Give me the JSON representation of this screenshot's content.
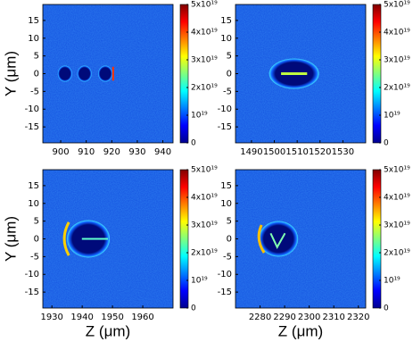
{
  "chart_data": [
    {
      "type": "heatmap",
      "ylabel": "Y (μm)",
      "xlim": [
        893,
        944
      ],
      "xticks": [
        900,
        910,
        920,
        930,
        940
      ],
      "ylim": [
        -19.5,
        19.5
      ],
      "yticks": [
        -15,
        -10,
        -5,
        0,
        5,
        10,
        15
      ],
      "colorbar": {
        "colormap": "jet",
        "clim": [
          0,
          5e+19
        ],
        "ticks": [
          0,
          {
            "value": 1e+19,
            "label": "10¹⁹"
          },
          {
            "value": 2e+19,
            "label": "2x10¹⁹"
          },
          {
            "value": 3e+19,
            "label": "3x10¹⁹"
          },
          {
            "value": 4e+19,
            "label": "4x10¹⁹"
          },
          {
            "value": 5e+19,
            "label": "5x10¹⁹"
          }
        ]
      }
    },
    {
      "type": "heatmap",
      "xlim": [
        1483,
        1540
      ],
      "xticks": [
        1490,
        1500,
        1510,
        1520,
        1530
      ],
      "ylim": [
        -19.5,
        19.5
      ],
      "yticks": [
        -15,
        -10,
        -5,
        0,
        5,
        10,
        15
      ],
      "colorbar": {
        "colormap": "jet",
        "clim": [
          0,
          5e+19
        ],
        "ticks": [
          0,
          {
            "value": 1e+19,
            "label": "10¹⁹"
          },
          {
            "value": 2e+19,
            "label": "2x10¹⁹"
          },
          {
            "value": 3e+19,
            "label": "3x10¹⁹"
          },
          {
            "value": 4e+19,
            "label": "4x10¹⁹"
          },
          {
            "value": 5e+19,
            "label": "5x10¹⁹"
          }
        ]
      }
    },
    {
      "type": "heatmap",
      "xlabel": "Z (μm)",
      "ylabel": "Y (μm)",
      "xlim": [
        1927,
        1970
      ],
      "xticks": [
        1930,
        1940,
        1950,
        1960
      ],
      "ylim": [
        -19.5,
        19.5
      ],
      "yticks": [
        -15,
        -10,
        -5,
        0,
        5,
        10,
        15
      ],
      "colorbar": {
        "colormap": "jet",
        "clim": [
          0,
          5e+19
        ],
        "ticks": [
          0,
          {
            "value": 1e+19,
            "label": "10¹⁹"
          },
          {
            "value": 2e+19,
            "label": "2x10¹⁹"
          },
          {
            "value": 3e+19,
            "label": "3x10¹⁹"
          },
          {
            "value": 4e+19,
            "label": "4x10¹⁹"
          },
          {
            "value": 5e+19,
            "label": "5x10¹⁹"
          }
        ]
      }
    },
    {
      "type": "heatmap",
      "xlabel": "Z (μm)",
      "xlim": [
        2270,
        2323
      ],
      "xticks": [
        2280,
        2290,
        2300,
        2310,
        2320
      ],
      "ylim": [
        -19.5,
        19.5
      ],
      "yticks": [
        -15,
        -10,
        -5,
        0,
        5,
        10,
        15
      ],
      "colorbar": {
        "colormap": "jet",
        "clim": [
          0,
          5e+19
        ],
        "ticks": [
          0,
          {
            "value": 1e+19,
            "label": "10¹⁹"
          },
          {
            "value": 2e+19,
            "label": "2x10¹⁹"
          },
          {
            "value": 3e+19,
            "label": "3x10¹⁹"
          },
          {
            "value": 4e+19,
            "label": "4x10¹⁹"
          },
          {
            "value": 5e+19,
            "label": "5x10¹⁹"
          }
        ]
      }
    }
  ]
}
